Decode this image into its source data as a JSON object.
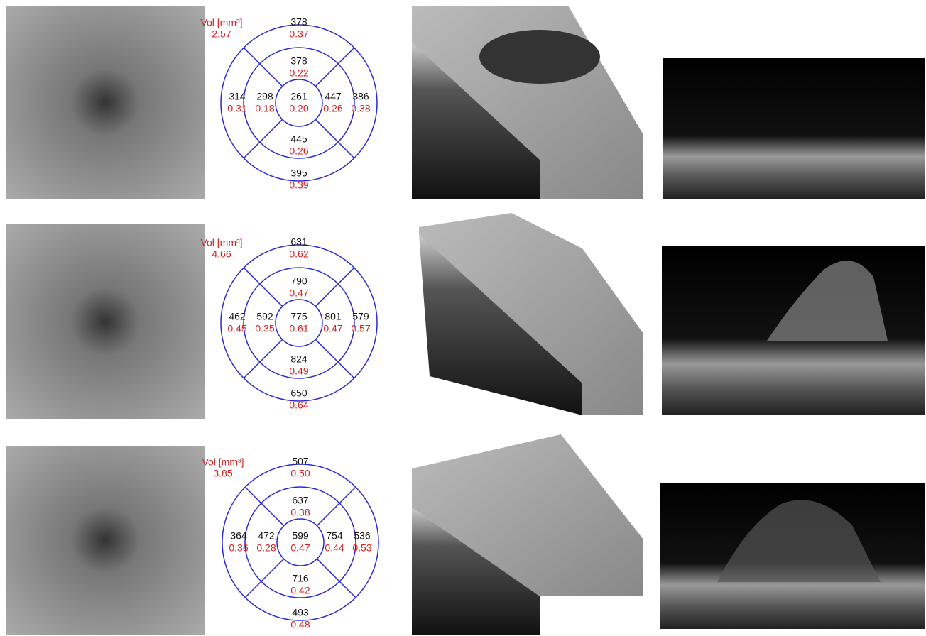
{
  "rows": [
    {
      "vol_label": "Vol [mm³]",
      "vol_total": "2.57",
      "sectors": {
        "top_outer": {
          "thickness": 378,
          "volume": "0.37"
        },
        "top_inner": {
          "thickness": 378,
          "volume": "0.22"
        },
        "left_outer": {
          "thickness": 314,
          "volume": "0.31"
        },
        "left_inner": {
          "thickness": 298,
          "volume": "0.18"
        },
        "center": {
          "thickness": 261,
          "volume": "0.20"
        },
        "right_inner": {
          "thickness": 447,
          "volume": "0.26"
        },
        "right_outer": {
          "thickness": 386,
          "volume": "0.38"
        },
        "bottom_inner": {
          "thickness": 445,
          "volume": "0.26"
        },
        "bottom_outer": {
          "thickness": 395,
          "volume": "0.39"
        }
      }
    },
    {
      "vol_label": "Vol [mm³]",
      "vol_total": "4.66",
      "sectors": {
        "top_outer": {
          "thickness": 631,
          "volume": "0.62"
        },
        "top_inner": {
          "thickness": 790,
          "volume": "0.47"
        },
        "left_outer": {
          "thickness": 462,
          "volume": "0.45"
        },
        "left_inner": {
          "thickness": 592,
          "volume": "0.35"
        },
        "center": {
          "thickness": 775,
          "volume": "0.61"
        },
        "right_inner": {
          "thickness": 801,
          "volume": "0.47"
        },
        "right_outer": {
          "thickness": 579,
          "volume": "0.57"
        },
        "bottom_inner": {
          "thickness": 824,
          "volume": "0.49"
        },
        "bottom_outer": {
          "thickness": 650,
          "volume": "0.64"
        }
      }
    },
    {
      "vol_label": "Vol [mm³]",
      "vol_total": "3.85",
      "sectors": {
        "top_outer": {
          "thickness": 507,
          "volume": "0.50"
        },
        "top_inner": {
          "thickness": 637,
          "volume": "0.38"
        },
        "left_outer": {
          "thickness": 364,
          "volume": "0.36"
        },
        "left_inner": {
          "thickness": 472,
          "volume": "0.28"
        },
        "center": {
          "thickness": 599,
          "volume": "0.47"
        },
        "right_inner": {
          "thickness": 754,
          "volume": "0.44"
        },
        "right_outer": {
          "thickness": 536,
          "volume": "0.53"
        },
        "bottom_inner": {
          "thickness": 716,
          "volume": "0.42"
        },
        "bottom_outer": {
          "thickness": 493,
          "volume": "0.48"
        }
      }
    }
  ]
}
